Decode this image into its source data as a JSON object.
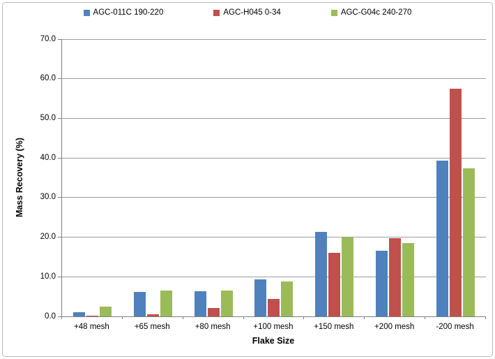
{
  "colors": {
    "series_blue": "#4F81BD",
    "series_red": "#C0504D",
    "series_green": "#9BBB59",
    "gridline": "#9c9c9c",
    "axis": "#808080",
    "frame_border": "#b9b9b9",
    "text": "#000000"
  },
  "chart_data": {
    "type": "bar",
    "title": "",
    "xlabel": "Flake Size",
    "ylabel": "Mass Recovery (%)",
    "ylim": [
      0,
      70
    ],
    "ytick_step": 10,
    "ytick_labels": [
      "0.0",
      "10.0",
      "20.0",
      "30.0",
      "40.0",
      "50.0",
      "60.0",
      "70.0"
    ],
    "grid": true,
    "legend_position": "top",
    "categories": [
      "+48 mesh",
      "+65 mesh",
      "+80 mesh",
      "+100 mesh",
      "+150 mesh",
      "+200 mesh",
      "-200 mesh"
    ],
    "series": [
      {
        "name": "AGC-011C 190-220",
        "color": "#4F81BD",
        "values": [
          1.0,
          6.1,
          6.3,
          9.4,
          21.4,
          16.5,
          39.4
        ]
      },
      {
        "name": "AGC-H045 0-34",
        "color": "#C0504D",
        "values": [
          0.1,
          0.6,
          2.1,
          4.4,
          16.0,
          19.7,
          57.4
        ]
      },
      {
        "name": "AGC-G04c 240-270",
        "color": "#9BBB59",
        "values": [
          2.4,
          6.6,
          6.6,
          8.9,
          20.0,
          18.6,
          37.3
        ]
      }
    ]
  }
}
